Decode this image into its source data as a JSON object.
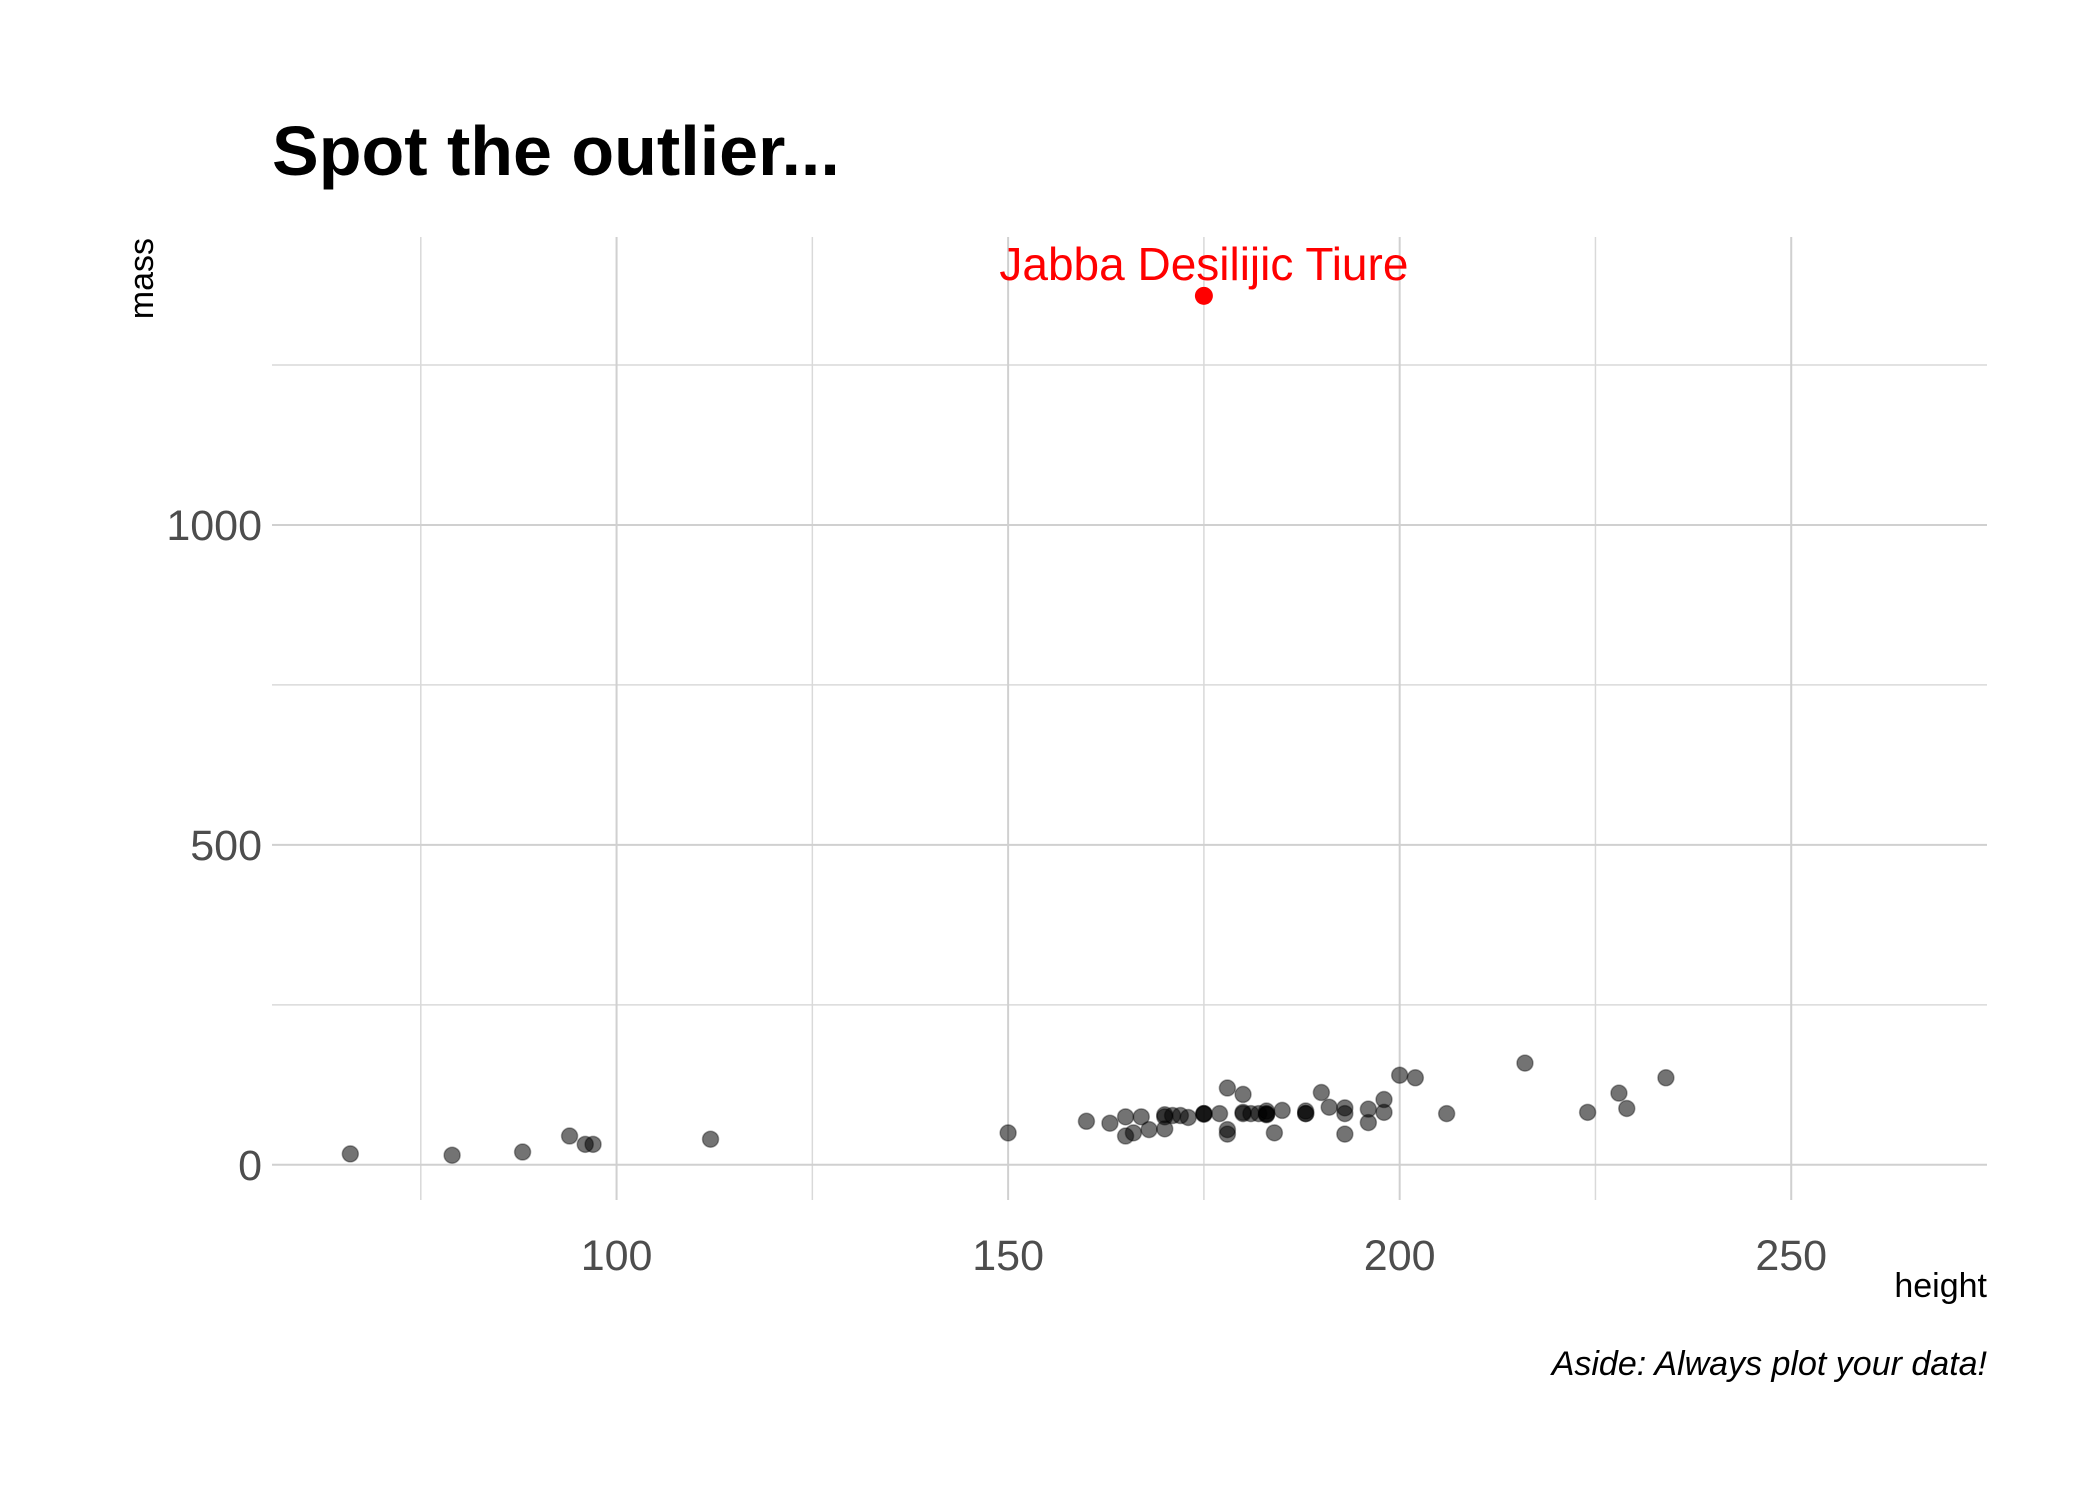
{
  "chart_data": {
    "type": "scatter",
    "title": "Spot the outlier...",
    "xlabel": "height",
    "ylabel": "mass",
    "caption": "Aside: Always plot your data!",
    "xlim": [
      56,
      275
    ],
    "ylim": [
      -55,
      1450
    ],
    "xticks": [
      100,
      150,
      200,
      250
    ],
    "xtick_labels": [
      "100",
      "150",
      "200",
      "250"
    ],
    "yticks": [
      0,
      500,
      1000
    ],
    "ytick_labels": [
      "0",
      "500",
      "1000"
    ],
    "x_minor_gridlines": [
      75,
      125,
      175,
      225
    ],
    "y_minor_gridlines": [
      250,
      750,
      1250
    ],
    "grid": true,
    "legend": "none",
    "point_color": "#000000",
    "point_opacity": 0.55,
    "outlier_color": "#ff0000",
    "outlier": {
      "name": "Jabba Desilijic Tiure",
      "x": 175,
      "y": 1358
    },
    "x": [
      66,
      79,
      88,
      94,
      96,
      97,
      112,
      150,
      160,
      163,
      165,
      165,
      166,
      167,
      168,
      170,
      170,
      170,
      171,
      172,
      173,
      175,
      175,
      175,
      177,
      178,
      178,
      178,
      180,
      180,
      180,
      181,
      182,
      183,
      183,
      183,
      183,
      184,
      185,
      188,
      188,
      188,
      190,
      191,
      193,
      193,
      193,
      196,
      196,
      198,
      198,
      200,
      202,
      206,
      216,
      224,
      228,
      229,
      234
    ],
    "y": [
      17,
      15,
      20,
      45,
      32,
      32,
      40,
      49.9,
      68,
      65,
      75,
      45,
      50,
      75,
      55,
      75,
      78.2,
      56.2,
      77,
      77,
      74,
      80,
      80,
      79,
      80,
      48,
      55,
      120,
      80,
      82,
      110,
      80,
      80,
      80,
      84,
      79,
      78.2,
      50,
      85,
      80,
      84,
      80,
      113,
      90,
      89,
      80,
      48,
      87,
      66,
      82,
      102,
      140,
      136,
      80,
      159,
      82,
      112,
      88,
      136
    ]
  }
}
